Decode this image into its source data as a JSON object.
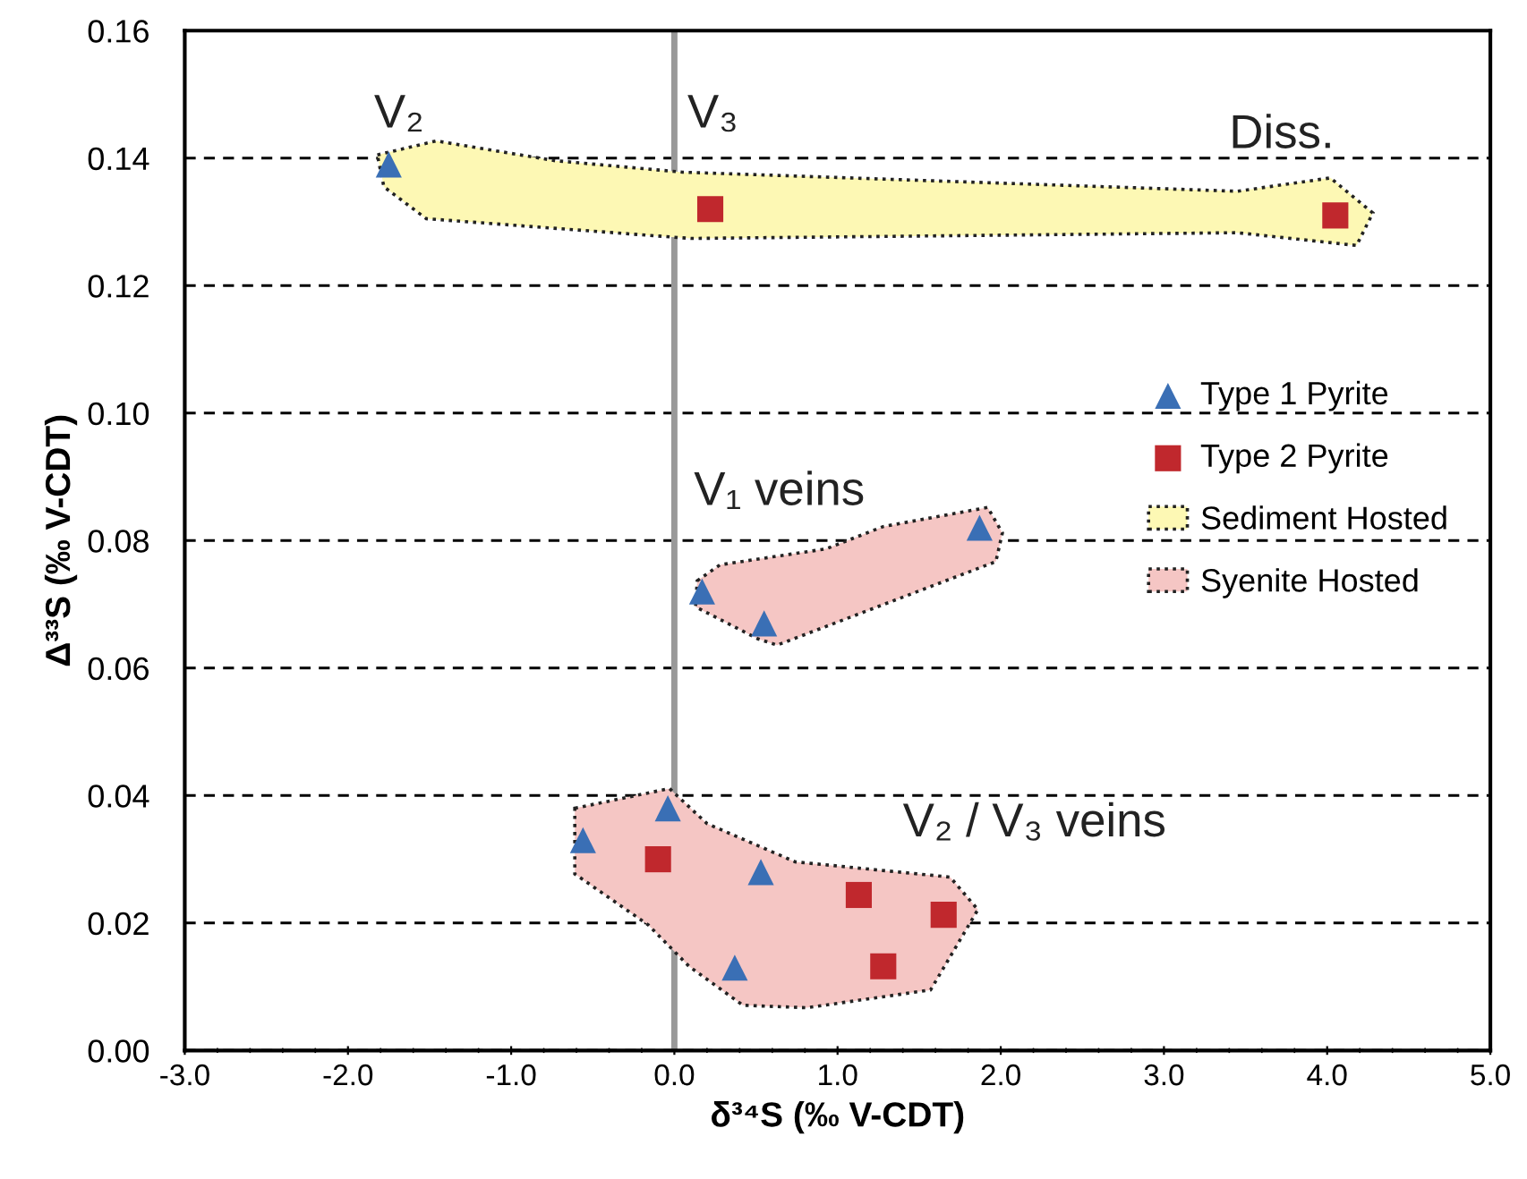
{
  "chart_data": {
    "type": "scatter",
    "xlabel": "δ³⁴S (‰ V-CDT)",
    "ylabel": "Δ³³S (‰ V-CDT)",
    "xlim": [
      -3.0,
      5.0
    ],
    "xticks": [
      {
        "value": -3,
        "label": "-3.0"
      },
      {
        "value": -2,
        "label": "-2.0"
      },
      {
        "value": -1,
        "label": "-1.0"
      },
      {
        "value": 0,
        "label": "0.0"
      },
      {
        "value": 1,
        "label": "1.0"
      },
      {
        "value": 2,
        "label": "2.0"
      },
      {
        "value": 3,
        "label": "3.0"
      },
      {
        "value": 4,
        "label": "4.0"
      },
      {
        "value": 5,
        "label": "5.0"
      }
    ],
    "ylim": [
      0.0,
      0.16
    ],
    "yticks": [
      {
        "value": 0,
        "label": "0.00"
      },
      {
        "value": 0.02,
        "label": "0.02"
      },
      {
        "value": 0.04,
        "label": "0.04"
      },
      {
        "value": 0.06,
        "label": "0.06"
      },
      {
        "value": 0.08,
        "label": "0.08"
      },
      {
        "value": 0.1,
        "label": "0.10"
      },
      {
        "value": 0.12,
        "label": "0.12"
      },
      {
        "value": 0.14,
        "label": "0.14"
      },
      {
        "value": 0.16,
        "label": "0.16"
      }
    ],
    "grid": "y",
    "legend": "right",
    "series": [
      {
        "name": "Type 1 Pyrite",
        "marker": "triangle",
        "color": "#3a6fb5",
        "x": [
          -1.75,
          0.17,
          0.55,
          1.87,
          -0.56,
          -0.04,
          0.53,
          0.37
        ],
        "values": [
          0.139,
          0.072,
          0.067,
          0.082,
          0.033,
          0.038,
          0.028,
          0.013
        ]
      },
      {
        "name": "Type 2 Pyrite",
        "marker": "square",
        "color": "#c0282d",
        "x": [
          0.22,
          4.05,
          -0.1,
          1.13,
          1.65,
          1.28
        ],
        "values": [
          0.132,
          0.131,
          0.03,
          0.0244,
          0.0213,
          0.0132
        ]
      },
      {
        "name": "Sediment Hosted",
        "type": "area",
        "color": "#fdf8b4",
        "x": [
          -1.82,
          -1.46,
          -0.73,
          0.05,
          3.45,
          4.02,
          4.28,
          4.18,
          3.45,
          0.1,
          -1.52,
          -1.78
        ],
        "values": [
          0.1405,
          0.1427,
          0.1396,
          0.1378,
          0.1348,
          0.1369,
          0.1314,
          0.1263,
          0.1283,
          0.1274,
          0.1305,
          0.1355
        ]
      },
      {
        "name": "Syenite Hosted",
        "type": "area",
        "color": "#f5c6c4",
        "x": [
          0.14,
          0.28,
          0.93,
          1.28,
          1.92,
          2.01,
          1.97,
          0.63,
          0.51,
          0.13,
          null,
          -0.61,
          -0.03,
          0.2,
          0.74,
          1.69,
          1.86,
          1.57,
          0.81,
          0.42,
          0.09,
          -0.16,
          -0.61
        ],
        "values": [
          0.0737,
          0.0762,
          0.0787,
          0.0822,
          0.0852,
          0.0812,
          0.0767,
          0.0636,
          0.0646,
          0.0696,
          null,
          0.038,
          0.0411,
          0.0356,
          0.0296,
          0.0272,
          0.0221,
          0.0095,
          0.0067,
          0.0071,
          0.0132,
          0.0197,
          0.0277
        ]
      }
    ],
    "ref_lines": [
      {
        "axis": "x",
        "value": 0,
        "color": "#999999",
        "line_style": "solid"
      }
    ],
    "annotations": [
      "V₂",
      "V₃",
      "Diss.",
      "V₁ veins",
      "V₂ / V₃ veins"
    ]
  }
}
